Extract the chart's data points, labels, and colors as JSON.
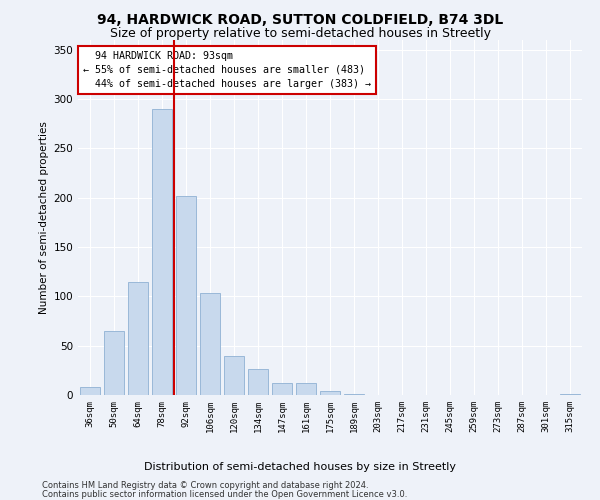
{
  "title": "94, HARDWICK ROAD, SUTTON COLDFIELD, B74 3DL",
  "subtitle": "Size of property relative to semi-detached houses in Streetly",
  "xlabel_bottom": "Distribution of semi-detached houses by size in Streetly",
  "ylabel": "Number of semi-detached properties",
  "footnote1": "Contains HM Land Registry data © Crown copyright and database right 2024.",
  "footnote2": "Contains public sector information licensed under the Open Government Licence v3.0.",
  "bar_labels": [
    "36sqm",
    "50sqm",
    "64sqm",
    "78sqm",
    "92sqm",
    "106sqm",
    "120sqm",
    "134sqm",
    "147sqm",
    "161sqm",
    "175sqm",
    "189sqm",
    "203sqm",
    "217sqm",
    "231sqm",
    "245sqm",
    "259sqm",
    "273sqm",
    "287sqm",
    "301sqm",
    "315sqm"
  ],
  "bar_values": [
    8,
    65,
    115,
    290,
    202,
    103,
    40,
    26,
    12,
    12,
    4,
    1,
    0,
    0,
    0,
    0,
    0,
    0,
    0,
    0,
    1
  ],
  "bar_color": "#c8d9ed",
  "bar_edge_color": "#9ab8d8",
  "property_label": "94 HARDWICK ROAD: 93sqm",
  "pct_smaller": 55,
  "count_smaller": 483,
  "pct_larger": 44,
  "count_larger": 383,
  "vline_color": "#cc0000",
  "vline_bin_index": 3.5,
  "annotation_box_color": "#cc0000",
  "ylim": [
    0,
    360
  ],
  "yticks": [
    0,
    50,
    100,
    150,
    200,
    250,
    300,
    350
  ],
  "background_color": "#eef2f9",
  "grid_color": "#ffffff",
  "title_fontsize": 10,
  "subtitle_fontsize": 9
}
